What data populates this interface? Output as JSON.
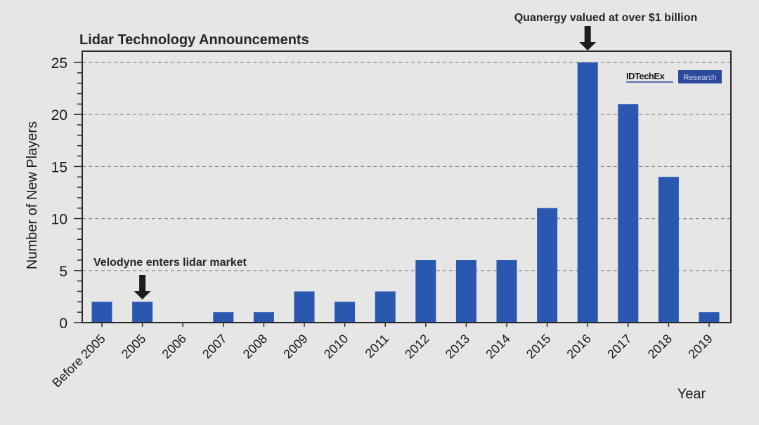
{
  "chart_data": {
    "type": "bar",
    "title": "Lidar Technology Announcements",
    "xlabel": "Year",
    "ylabel": "Number of New Players",
    "ylim": [
      0,
      25
    ],
    "yticks": [
      0,
      5,
      10,
      15,
      20,
      25
    ],
    "grid": "horizontal-dashed",
    "categories": [
      "Before 2005",
      "2005",
      "2006",
      "2007",
      "2008",
      "2009",
      "2010",
      "2011",
      "2012",
      "2013",
      "2014",
      "2015",
      "2016",
      "2017",
      "2018",
      "2019"
    ],
    "values": [
      2,
      2,
      0,
      1,
      1,
      3,
      2,
      3,
      6,
      6,
      6,
      11,
      25,
      21,
      14,
      1
    ],
    "bar_color": "#2a57b0",
    "annotations": [
      {
        "text": "Velodyne enters lidar market",
        "category": "2005"
      },
      {
        "text": "Quanergy valued at over $1 billion",
        "category": "2016"
      }
    ]
  },
  "logo": {
    "name": "IDTechEx",
    "badge": "Research",
    "badge_color": "#2b4a9c"
  }
}
